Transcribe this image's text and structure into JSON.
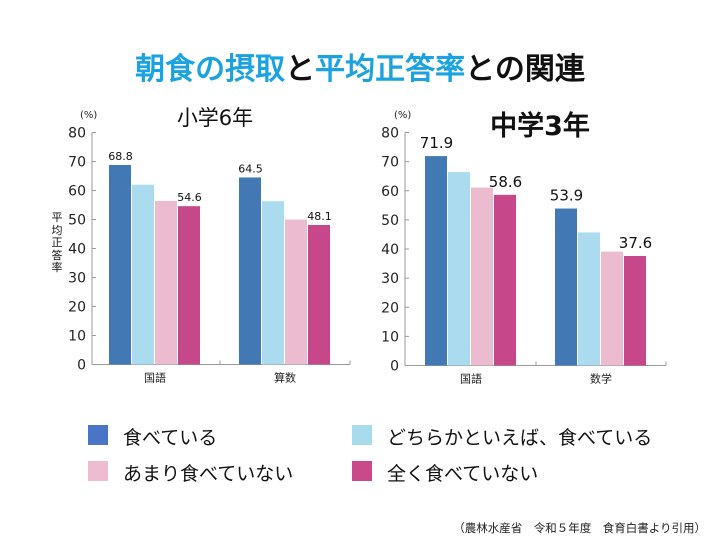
{
  "title": {
    "parts": [
      {
        "text": "朝食の摂取",
        "highlight": true
      },
      {
        "text": "と",
        "highlight": false
      },
      {
        "text": "平均正答率",
        "highlight": true
      },
      {
        "text": "との関連",
        "highlight": false
      }
    ],
    "highlight_color": "#1aa3e0"
  },
  "legend": [
    {
      "label": "食べている",
      "color": "#4a74c4"
    },
    {
      "label": "どちらかといえば、食べている",
      "color": "#a8dcec"
    },
    {
      "label": "あまり食べていない",
      "color": "#edbcd0"
    },
    {
      "label": "全く食べていない",
      "color": "#c84a88"
    }
  ],
  "source": "（農林水産省　令和５年度　食育白書より引用）",
  "chart_data": [
    {
      "type": "bar",
      "title": "小学6年",
      "unit_label": "(%)",
      "ylabel": "平均正答率",
      "xlabel": "",
      "ylim": [
        0,
        80
      ],
      "yticks": [
        0,
        10,
        20,
        30,
        40,
        50,
        60,
        70,
        80
      ],
      "categories": [
        "国語",
        "算数"
      ],
      "series": [
        {
          "name": "食べている",
          "color": "#4279b5",
          "values": [
            68.8,
            64.5
          ],
          "labels": [
            "68.8",
            "64.5"
          ]
        },
        {
          "name": "どちらかといえば、食べている",
          "color": "#aadbee",
          "values": [
            62.0,
            56.3
          ],
          "labels": [
            null,
            null
          ]
        },
        {
          "name": "あまり食べていない",
          "color": "#ecbbcf",
          "values": [
            56.4,
            50.0
          ],
          "labels": [
            null,
            null
          ]
        },
        {
          "name": "全く食べていない",
          "color": "#c7488a",
          "values": [
            54.6,
            48.1
          ],
          "labels": [
            "54.6",
            "48.1"
          ]
        }
      ],
      "grid": false
    },
    {
      "type": "bar",
      "title": "中学3年",
      "unit_label": "(%)",
      "ylabel": "",
      "xlabel": "",
      "ylim": [
        0,
        80
      ],
      "yticks": [
        0,
        10,
        20,
        30,
        40,
        50,
        60,
        70,
        80
      ],
      "categories": [
        "国語",
        "数学"
      ],
      "series": [
        {
          "name": "食べている",
          "color": "#4279b5",
          "values": [
            71.9,
            53.9
          ],
          "labels": [
            "71.9",
            "53.9"
          ]
        },
        {
          "name": "どちらかといえば、食べている",
          "color": "#aadbee",
          "values": [
            66.4,
            45.7
          ],
          "labels": [
            null,
            null
          ]
        },
        {
          "name": "あまり食べていない",
          "color": "#ecbbcf",
          "values": [
            61.1,
            39.1
          ],
          "labels": [
            null,
            null
          ]
        },
        {
          "name": "全く食べていない",
          "color": "#c7488a",
          "values": [
            58.6,
            37.6
          ],
          "labels": [
            "58.6",
            "37.6"
          ]
        }
      ],
      "grid": false
    }
  ]
}
